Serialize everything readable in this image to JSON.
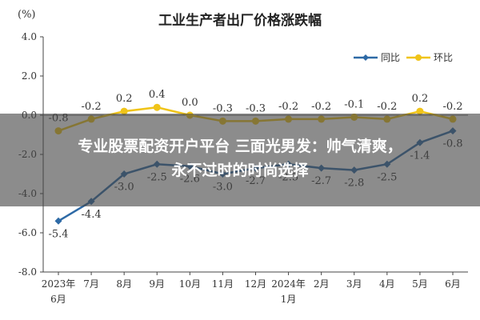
{
  "chart_data": {
    "type": "line",
    "title": "工业生产者出厂价格涨跌幅",
    "y_unit": "(%)",
    "ylim": [
      -8.0,
      4.0
    ],
    "yticks": [
      "4.0",
      "2.0",
      "0.0",
      "-2.0",
      "-4.0",
      "-6.0",
      "-8.0"
    ],
    "categories": [
      [
        "2023年",
        "6月"
      ],
      [
        "7月"
      ],
      [
        "8月"
      ],
      [
        "9月"
      ],
      [
        "10月"
      ],
      [
        "11月"
      ],
      [
        "12月"
      ],
      [
        "2024年",
        "1月"
      ],
      [
        "2月"
      ],
      [
        "3月"
      ],
      [
        "4月"
      ],
      [
        "5月"
      ],
      [
        "6月"
      ]
    ],
    "series": [
      {
        "name": "同比",
        "color": "#2e6aa6",
        "marker": "diamond",
        "values": [
          -5.4,
          -4.4,
          -3.0,
          -2.5,
          -2.6,
          -3.0,
          -2.7,
          -2.5,
          -2.7,
          -2.8,
          -2.5,
          -1.4,
          -0.8
        ],
        "labels": [
          "-5.4",
          "-4.4",
          "-3.0",
          "-2.5",
          "-2.6",
          "-3.0",
          "-2.7",
          "-2.5",
          "-2.7",
          "-2.8",
          "-2.5",
          "-1.4",
          "-0.8"
        ]
      },
      {
        "name": "环比",
        "color": "#f0c419",
        "marker": "circle",
        "values": [
          -0.8,
          -0.2,
          0.2,
          0.4,
          0.0,
          -0.3,
          -0.3,
          -0.2,
          -0.2,
          -0.1,
          -0.2,
          0.2,
          -0.2
        ],
        "labels": [
          "-0.8",
          "-0.2",
          "0.2",
          "0.4",
          "0.0",
          "-0.3",
          "-0.3",
          "-0.2",
          "-0.2",
          "-0.1",
          "-0.2",
          "0.2",
          "-0.2"
        ]
      }
    ],
    "legend": "top-right",
    "grid": false
  },
  "overlay": {
    "line1": "专业股票配资开户平台 三面光男发：帅气清爽，",
    "line2": "永不过时的时尚选择"
  }
}
